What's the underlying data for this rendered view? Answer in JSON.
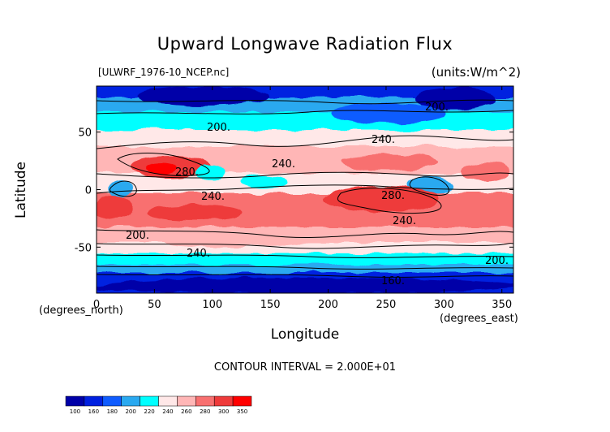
{
  "chart_data": {
    "type": "heatmap",
    "title": "Upward Longwave Radiation Flux",
    "subtitle_left": "[ULWRF_1976-10_NCEP.nc]",
    "subtitle_right": "(units:W/m^2)",
    "xlabel": "Longitude",
    "ylabel": "Latitude",
    "x_units": "(degrees_east)",
    "y_units": "(degrees_north)",
    "xlim": [
      0,
      360
    ],
    "ylim": [
      -90,
      90
    ],
    "x_ticks": [
      "0",
      "50",
      "100",
      "150",
      "200",
      "250",
      "300",
      "350"
    ],
    "y_ticks": [
      "50",
      "0",
      "-50"
    ],
    "contour_interval": "CONTOUR INTERVAL = 2.000E+01",
    "contour_labels": [
      "200.",
      "240.",
      "280.",
      "240.",
      "240.",
      "280.",
      "240.",
      "200.",
      "200.",
      "240.",
      "200.",
      "160."
    ],
    "colorbar": {
      "levels": [
        "100",
        "160",
        "180",
        "200",
        "220",
        "240",
        "260",
        "280",
        "300",
        "350"
      ],
      "colors": [
        "#0000a8",
        "#0020e0",
        "#0f5cff",
        "#2aa9f0",
        "#00ffff",
        "#ffe8e8",
        "#ffb6b6",
        "#f87070",
        "#ee3a3a",
        "#ff0000"
      ]
    }
  }
}
